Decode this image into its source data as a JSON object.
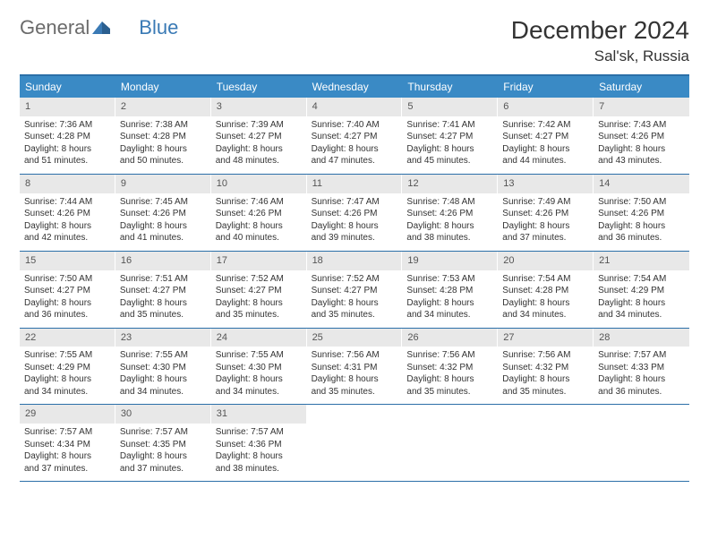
{
  "logo": {
    "part1": "General",
    "part2": "Blue"
  },
  "title": "December 2024",
  "location": "Sal'sk, Russia",
  "colors": {
    "header_bg": "#3a8ac5",
    "border": "#2b6fa8",
    "daynum_bg": "#e8e8e8",
    "text": "#333333",
    "logo_gray": "#6b6b6b",
    "logo_blue": "#3a7ab5"
  },
  "weekdays": [
    "Sunday",
    "Monday",
    "Tuesday",
    "Wednesday",
    "Thursday",
    "Friday",
    "Saturday"
  ],
  "weeks": [
    [
      {
        "n": "1",
        "sr": "Sunrise: 7:36 AM",
        "ss": "Sunset: 4:28 PM",
        "dl1": "Daylight: 8 hours",
        "dl2": "and 51 minutes."
      },
      {
        "n": "2",
        "sr": "Sunrise: 7:38 AM",
        "ss": "Sunset: 4:28 PM",
        "dl1": "Daylight: 8 hours",
        "dl2": "and 50 minutes."
      },
      {
        "n": "3",
        "sr": "Sunrise: 7:39 AM",
        "ss": "Sunset: 4:27 PM",
        "dl1": "Daylight: 8 hours",
        "dl2": "and 48 minutes."
      },
      {
        "n": "4",
        "sr": "Sunrise: 7:40 AM",
        "ss": "Sunset: 4:27 PM",
        "dl1": "Daylight: 8 hours",
        "dl2": "and 47 minutes."
      },
      {
        "n": "5",
        "sr": "Sunrise: 7:41 AM",
        "ss": "Sunset: 4:27 PM",
        "dl1": "Daylight: 8 hours",
        "dl2": "and 45 minutes."
      },
      {
        "n": "6",
        "sr": "Sunrise: 7:42 AM",
        "ss": "Sunset: 4:27 PM",
        "dl1": "Daylight: 8 hours",
        "dl2": "and 44 minutes."
      },
      {
        "n": "7",
        "sr": "Sunrise: 7:43 AM",
        "ss": "Sunset: 4:26 PM",
        "dl1": "Daylight: 8 hours",
        "dl2": "and 43 minutes."
      }
    ],
    [
      {
        "n": "8",
        "sr": "Sunrise: 7:44 AM",
        "ss": "Sunset: 4:26 PM",
        "dl1": "Daylight: 8 hours",
        "dl2": "and 42 minutes."
      },
      {
        "n": "9",
        "sr": "Sunrise: 7:45 AM",
        "ss": "Sunset: 4:26 PM",
        "dl1": "Daylight: 8 hours",
        "dl2": "and 41 minutes."
      },
      {
        "n": "10",
        "sr": "Sunrise: 7:46 AM",
        "ss": "Sunset: 4:26 PM",
        "dl1": "Daylight: 8 hours",
        "dl2": "and 40 minutes."
      },
      {
        "n": "11",
        "sr": "Sunrise: 7:47 AM",
        "ss": "Sunset: 4:26 PM",
        "dl1": "Daylight: 8 hours",
        "dl2": "and 39 minutes."
      },
      {
        "n": "12",
        "sr": "Sunrise: 7:48 AM",
        "ss": "Sunset: 4:26 PM",
        "dl1": "Daylight: 8 hours",
        "dl2": "and 38 minutes."
      },
      {
        "n": "13",
        "sr": "Sunrise: 7:49 AM",
        "ss": "Sunset: 4:26 PM",
        "dl1": "Daylight: 8 hours",
        "dl2": "and 37 minutes."
      },
      {
        "n": "14",
        "sr": "Sunrise: 7:50 AM",
        "ss": "Sunset: 4:26 PM",
        "dl1": "Daylight: 8 hours",
        "dl2": "and 36 minutes."
      }
    ],
    [
      {
        "n": "15",
        "sr": "Sunrise: 7:50 AM",
        "ss": "Sunset: 4:27 PM",
        "dl1": "Daylight: 8 hours",
        "dl2": "and 36 minutes."
      },
      {
        "n": "16",
        "sr": "Sunrise: 7:51 AM",
        "ss": "Sunset: 4:27 PM",
        "dl1": "Daylight: 8 hours",
        "dl2": "and 35 minutes."
      },
      {
        "n": "17",
        "sr": "Sunrise: 7:52 AM",
        "ss": "Sunset: 4:27 PM",
        "dl1": "Daylight: 8 hours",
        "dl2": "and 35 minutes."
      },
      {
        "n": "18",
        "sr": "Sunrise: 7:52 AM",
        "ss": "Sunset: 4:27 PM",
        "dl1": "Daylight: 8 hours",
        "dl2": "and 35 minutes."
      },
      {
        "n": "19",
        "sr": "Sunrise: 7:53 AM",
        "ss": "Sunset: 4:28 PM",
        "dl1": "Daylight: 8 hours",
        "dl2": "and 34 minutes."
      },
      {
        "n": "20",
        "sr": "Sunrise: 7:54 AM",
        "ss": "Sunset: 4:28 PM",
        "dl1": "Daylight: 8 hours",
        "dl2": "and 34 minutes."
      },
      {
        "n": "21",
        "sr": "Sunrise: 7:54 AM",
        "ss": "Sunset: 4:29 PM",
        "dl1": "Daylight: 8 hours",
        "dl2": "and 34 minutes."
      }
    ],
    [
      {
        "n": "22",
        "sr": "Sunrise: 7:55 AM",
        "ss": "Sunset: 4:29 PM",
        "dl1": "Daylight: 8 hours",
        "dl2": "and 34 minutes."
      },
      {
        "n": "23",
        "sr": "Sunrise: 7:55 AM",
        "ss": "Sunset: 4:30 PM",
        "dl1": "Daylight: 8 hours",
        "dl2": "and 34 minutes."
      },
      {
        "n": "24",
        "sr": "Sunrise: 7:55 AM",
        "ss": "Sunset: 4:30 PM",
        "dl1": "Daylight: 8 hours",
        "dl2": "and 34 minutes."
      },
      {
        "n": "25",
        "sr": "Sunrise: 7:56 AM",
        "ss": "Sunset: 4:31 PM",
        "dl1": "Daylight: 8 hours",
        "dl2": "and 35 minutes."
      },
      {
        "n": "26",
        "sr": "Sunrise: 7:56 AM",
        "ss": "Sunset: 4:32 PM",
        "dl1": "Daylight: 8 hours",
        "dl2": "and 35 minutes."
      },
      {
        "n": "27",
        "sr": "Sunrise: 7:56 AM",
        "ss": "Sunset: 4:32 PM",
        "dl1": "Daylight: 8 hours",
        "dl2": "and 35 minutes."
      },
      {
        "n": "28",
        "sr": "Sunrise: 7:57 AM",
        "ss": "Sunset: 4:33 PM",
        "dl1": "Daylight: 8 hours",
        "dl2": "and 36 minutes."
      }
    ],
    [
      {
        "n": "29",
        "sr": "Sunrise: 7:57 AM",
        "ss": "Sunset: 4:34 PM",
        "dl1": "Daylight: 8 hours",
        "dl2": "and 37 minutes."
      },
      {
        "n": "30",
        "sr": "Sunrise: 7:57 AM",
        "ss": "Sunset: 4:35 PM",
        "dl1": "Daylight: 8 hours",
        "dl2": "and 37 minutes."
      },
      {
        "n": "31",
        "sr": "Sunrise: 7:57 AM",
        "ss": "Sunset: 4:36 PM",
        "dl1": "Daylight: 8 hours",
        "dl2": "and 38 minutes."
      },
      {
        "empty": true
      },
      {
        "empty": true
      },
      {
        "empty": true
      },
      {
        "empty": true
      }
    ]
  ]
}
